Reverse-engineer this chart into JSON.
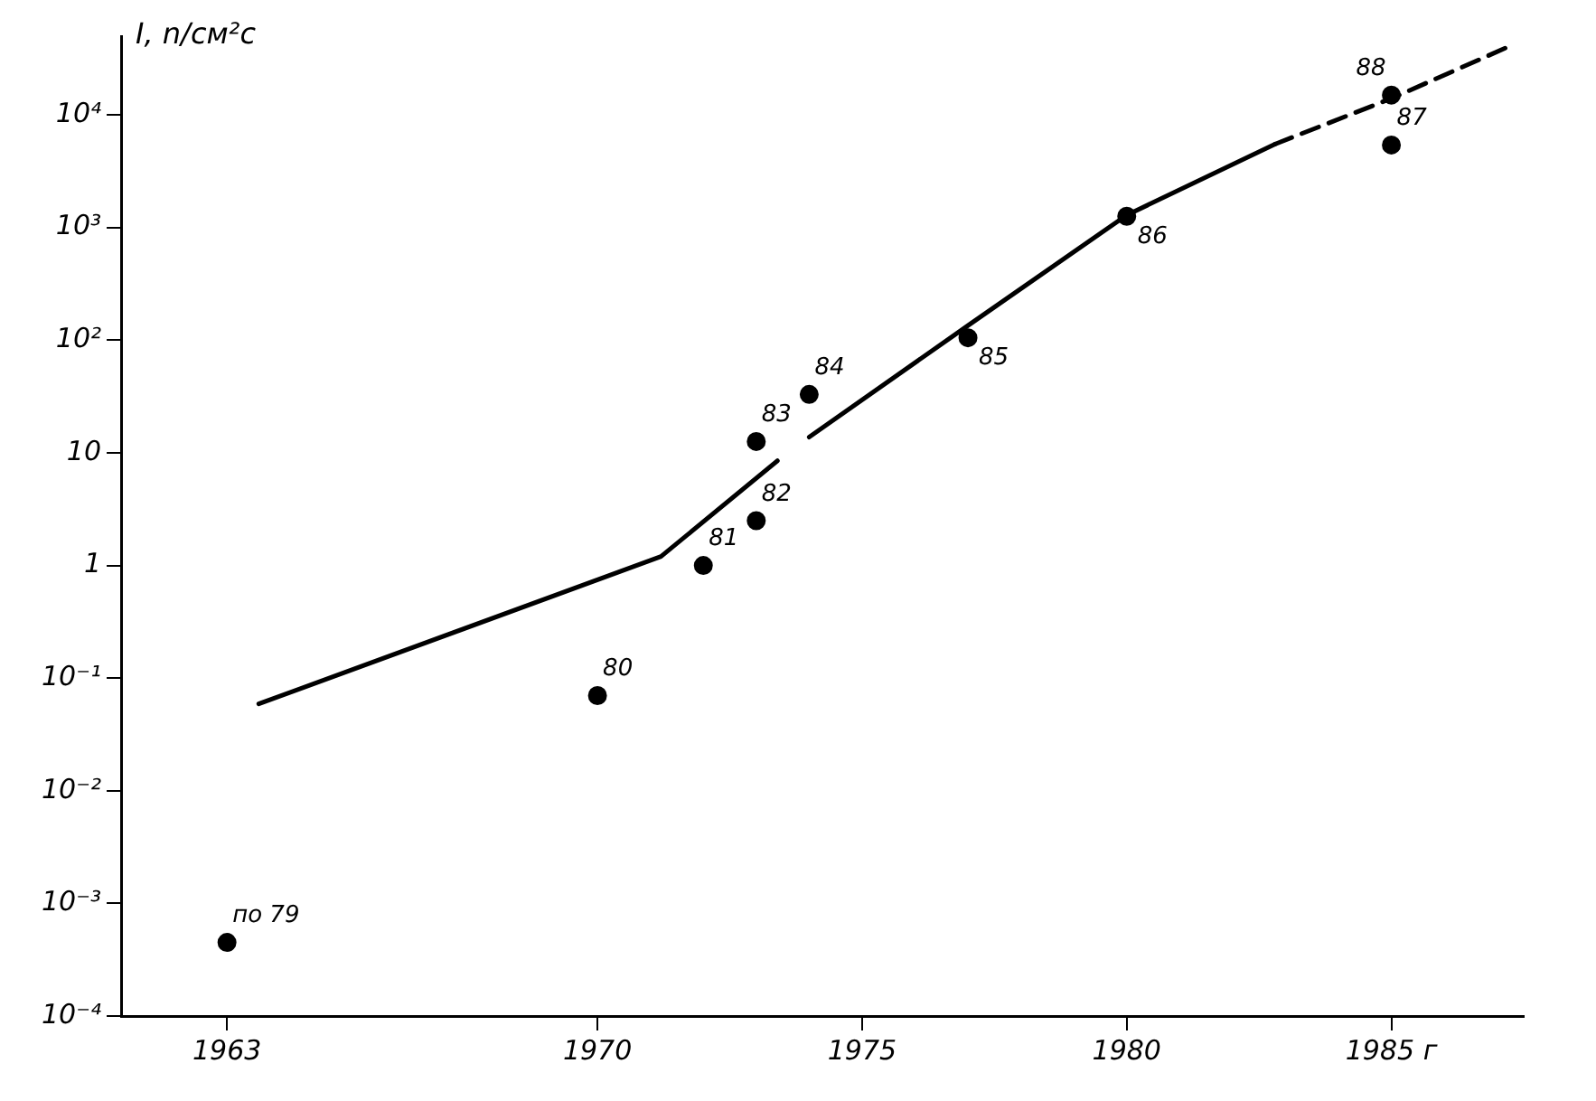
{
  "chart_data": {
    "type": "scatter",
    "ylabel": "I, n/см²с",
    "log": "y",
    "xlim": [
      1961,
      1987.5
    ],
    "xticks": [
      1963,
      1970,
      1975,
      1980,
      {
        "value": 1985,
        "label": "1985 г"
      }
    ],
    "ylim": [
      0.0001,
      50000
    ],
    "yticks": [
      {
        "value": 0.0001,
        "label": "10⁻⁴"
      },
      {
        "value": 0.001,
        "label": "10⁻³"
      },
      {
        "value": 0.01,
        "label": "10⁻²"
      },
      {
        "value": 0.1,
        "label": "10⁻¹"
      },
      1,
      10,
      {
        "value": 100,
        "label": "10²"
      },
      {
        "value": 1000,
        "label": "10³"
      },
      {
        "value": 10000,
        "label": "10⁴"
      }
    ],
    "marker": "circle",
    "series": [
      {
        "color": "#000000",
        "x": [
          1963,
          1970,
          1972,
          1973,
          1973,
          1974,
          1977,
          1980
        ],
        "values": [
          0.00045,
          0.07,
          1,
          2.5,
          12.6,
          33,
          105,
          1260
        ]
      },
      {
        "color": "#000000",
        "x": [
          1985,
          1985
        ],
        "values": [
          5400,
          15000
        ]
      },
      {
        "type": "line",
        "color": "#000000",
        "marker": "none",
        "line_style": "solid",
        "x": [
          1963.6,
          1971.2,
          1973.4
        ],
        "values": [
          0.059,
          1.2,
          8.5
        ]
      },
      {
        "type": "line",
        "color": "#000000",
        "marker": "none",
        "line_style": "solid",
        "x": [
          1974,
          1977,
          1980,
          1982.8
        ],
        "values": [
          13.8,
          135,
          1290,
          5500
        ]
      },
      {
        "type": "line",
        "color": "#000000",
        "marker": "none",
        "line_style": "dashed",
        "x": [
          1982.8,
          1985,
          1987.3
        ],
        "values": [
          5500,
          14000,
          42000
        ]
      }
    ],
    "annotations": [
      {
        "text": "по 79",
        "x": 1963,
        "y": 0.00045
      },
      {
        "text": "80",
        "x": 1970,
        "y": 0.07
      },
      {
        "text": "81",
        "x": 1972,
        "y": 1
      },
      {
        "text": "82",
        "x": 1973,
        "y": 2.5
      },
      {
        "text": "83",
        "x": 1973,
        "y": 12.6
      },
      {
        "text": "84",
        "x": 1974,
        "y": 33
      },
      {
        "text": "85",
        "x": 1977,
        "y": 105
      },
      {
        "text": "86",
        "x": 1980,
        "y": 1260
      },
      {
        "text": "87",
        "x": 1985,
        "y": 5400
      },
      {
        "text": "88",
        "x": 1985,
        "y": 15000
      }
    ]
  }
}
